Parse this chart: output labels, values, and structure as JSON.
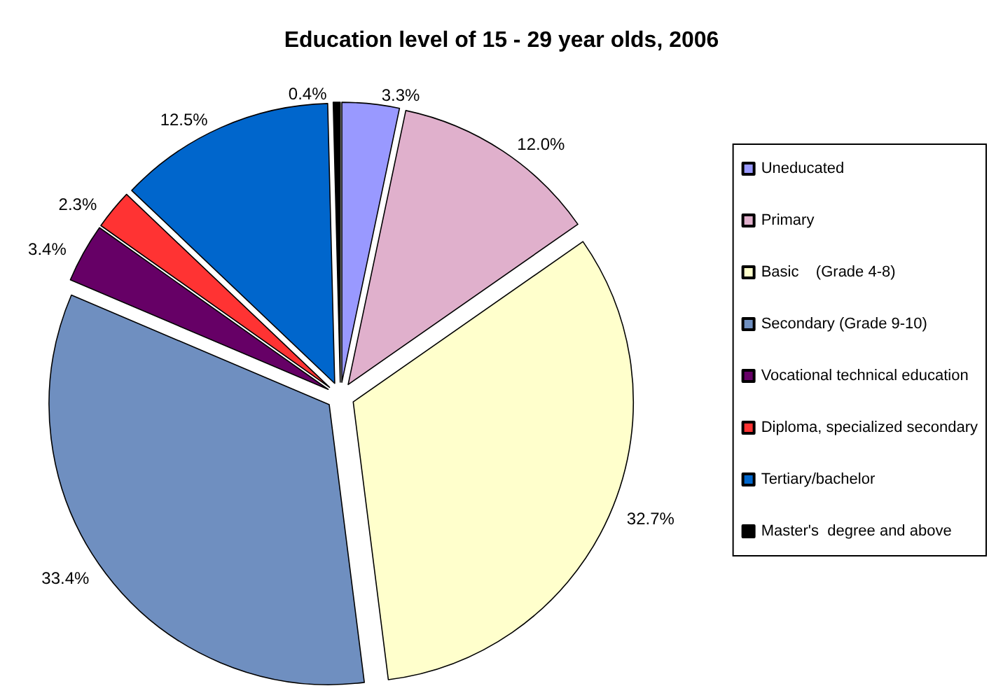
{
  "chart_data": {
    "type": "pie",
    "title": "Education level of 15 - 29 year olds, 2006",
    "categories": [
      "Uneducated",
      "Primary",
      "Basic    (Grade 4-8)",
      "Secondary (Grade 9-10)",
      "Vocational technical education",
      "Diploma, specialized secondary",
      "Tertiary/bachelor",
      "Master's  degree and above"
    ],
    "values": [
      3.3,
      12.0,
      32.7,
      33.4,
      3.4,
      2.3,
      12.5,
      0.4
    ],
    "value_labels": [
      "3.3%",
      "12.0%",
      "32.7%",
      "33.4%",
      "3.4%",
      "2.3%",
      "12.5%",
      "0.4%"
    ],
    "colors": [
      "#9999ff",
      "#e0b0cc",
      "#ffffcc",
      "#6f8fc0",
      "#660066",
      "#ff3333",
      "#0066cc",
      "#000000"
    ],
    "legend": "right"
  }
}
